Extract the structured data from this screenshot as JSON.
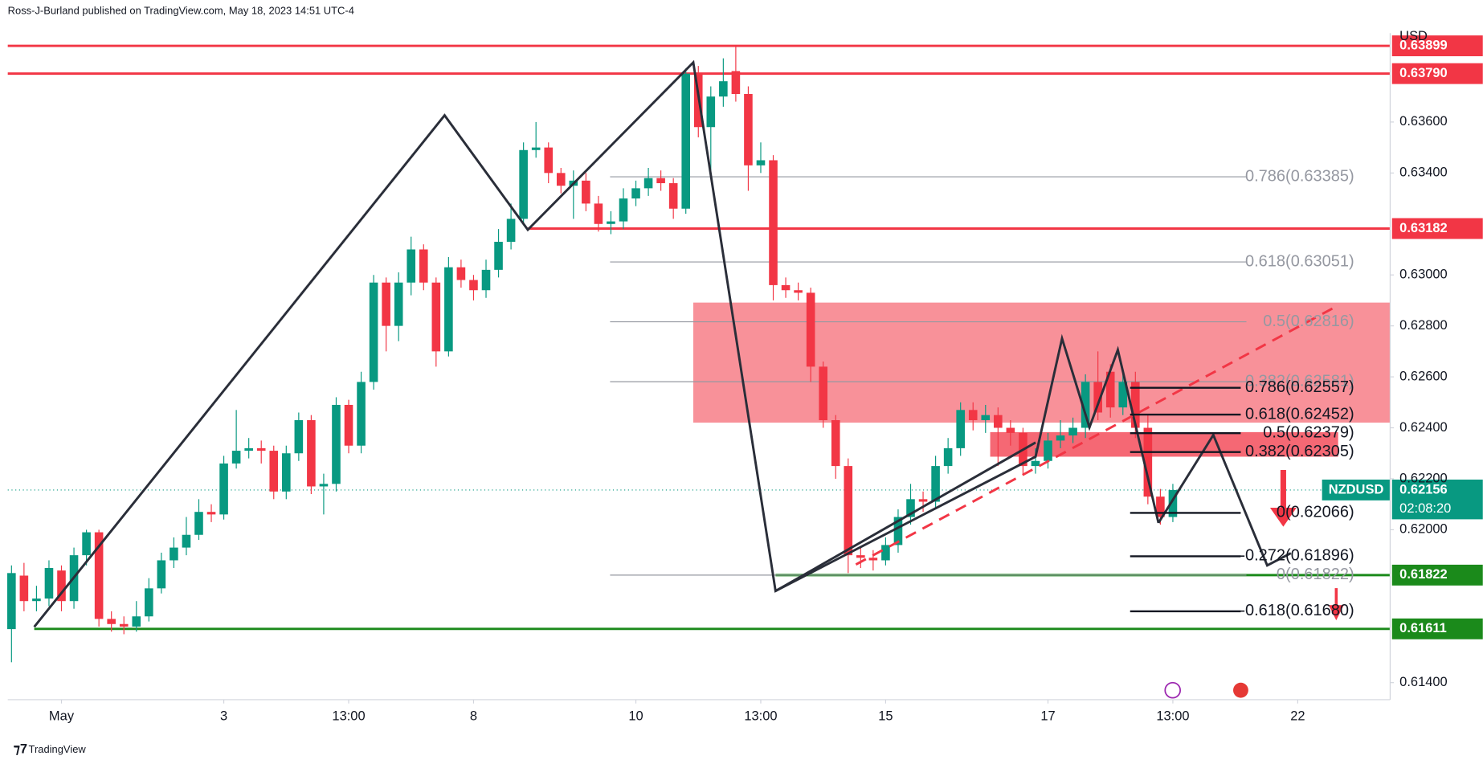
{
  "chart_data": {
    "type": "candlestick",
    "attribution": "Ross-J-Burland published on TradingView.com, May 18, 2023 14:51 UTC-4",
    "currency": "USD",
    "symbol": "NZDUSD",
    "countdown": "02:08:20",
    "footer": "TradingView",
    "last_price": {
      "value": 0.62156,
      "label": "0.62156"
    },
    "up_color": "#089981",
    "down_color": "#f23645",
    "xlim": [
      -0.3,
      110.4
    ],
    "ylim": [
      0.61333,
      0.63949
    ],
    "xticks": [
      {
        "value": 4,
        "label": "May"
      },
      {
        "value": 17,
        "label": "3"
      },
      {
        "value": 27,
        "label": "13:00"
      },
      {
        "value": 37,
        "label": "8"
      },
      {
        "value": 50,
        "label": "10"
      },
      {
        "value": 60,
        "label": "13:00"
      },
      {
        "value": 70,
        "label": "15"
      },
      {
        "value": 83,
        "label": "17"
      },
      {
        "value": 93,
        "label": "13:00"
      },
      {
        "value": 103,
        "label": "22"
      }
    ],
    "yticks": [
      {
        "value": 0.636,
        "label": "0.63600"
      },
      {
        "value": 0.634,
        "label": "0.63400"
      },
      {
        "value": 0.63,
        "label": "0.63000"
      },
      {
        "value": 0.628,
        "label": "0.62800"
      },
      {
        "value": 0.626,
        "label": "0.62600"
      },
      {
        "value": 0.624,
        "label": "0.62400"
      },
      {
        "value": 0.622,
        "label": "0.62200"
      },
      {
        "value": 0.62,
        "label": "0.62000"
      },
      {
        "value": 0.614,
        "label": "0.61400"
      }
    ],
    "hlines": [
      {
        "value": 0.63899,
        "label": "0.63899",
        "color": "#f23645"
      },
      {
        "value": 0.6379,
        "label": "0.63790",
        "color": "#f23645"
      },
      {
        "value": 0.63182,
        "label": "0.63182",
        "color": "#f23645"
      },
      {
        "value": 0.61822,
        "label": "0.61822",
        "color": "#1b8a1b"
      },
      {
        "value": 0.61611,
        "label": "0.61611",
        "color": "#1b8a1b"
      }
    ],
    "fib_a": [
      {
        "value": 0.63385,
        "label": "0.786(0.63385)"
      },
      {
        "value": 0.63051,
        "label": "0.618(0.63051)"
      },
      {
        "value": 0.62816,
        "label": "0.5(0.62816)"
      },
      {
        "value": 0.62581,
        "label": "0.382(0.62581)"
      },
      {
        "value": 0.61822,
        "label": "0(0.61822)"
      }
    ],
    "fib_b": [
      {
        "value": 0.62557,
        "label": "0.786(0.62557)"
      },
      {
        "value": 0.62452,
        "label": "0.618(0.62452)"
      },
      {
        "value": 0.62379,
        "label": "0.5(0.62379)"
      },
      {
        "value": 0.62305,
        "label": "0.382(0.62305)"
      },
      {
        "value": 0.62066,
        "label": "0(0.62066)"
      },
      {
        "value": 0.61896,
        "label": "-0.272(0.61896)"
      },
      {
        "value": 0.6168,
        "label": "-0.618(0.61680)"
      }
    ],
    "x": [
      0,
      1,
      2,
      3,
      4,
      5,
      6,
      7,
      8,
      9,
      10,
      11,
      12,
      13,
      14,
      15,
      16,
      17,
      18,
      19,
      20,
      21,
      22,
      23,
      24,
      25,
      26,
      27,
      28,
      29,
      30,
      31,
      32,
      33,
      34,
      35,
      36,
      37,
      38,
      39,
      40,
      41,
      42,
      43,
      44,
      45,
      46,
      47,
      48,
      49,
      50,
      51,
      52,
      53,
      54,
      55,
      56,
      57,
      58,
      59,
      60,
      61,
      62,
      63,
      64,
      65,
      66,
      67,
      68,
      69,
      70,
      71,
      72,
      73,
      74,
      75,
      76,
      77,
      78,
      79,
      80,
      81,
      82,
      83,
      84,
      85,
      86,
      87,
      88,
      89,
      90,
      91,
      92,
      93
    ],
    "open": [
      0.6161,
      0.6182,
      0.6172,
      0.6173,
      0.6184,
      0.6172,
      0.619,
      0.6199,
      0.6165,
      0.6163,
      0.6162,
      0.6166,
      0.6177,
      0.6188,
      0.6193,
      0.6198,
      0.6207,
      0.6206,
      0.6226,
      0.6231,
      0.6232,
      0.6231,
      0.6215,
      0.623,
      0.6243,
      0.6217,
      0.6218,
      0.6249,
      0.6233,
      0.6258,
      0.6297,
      0.628,
      0.6297,
      0.631,
      0.6297,
      0.627,
      0.6303,
      0.6298,
      0.6294,
      0.6302,
      0.6313,
      0.6322,
      0.6349,
      0.635,
      0.634,
      0.6335,
      0.6337,
      0.6328,
      0.632,
      0.6321,
      0.633,
      0.6334,
      0.6338,
      0.6336,
      0.6326,
      0.6379,
      0.6358,
      0.637,
      0.638,
      0.6371,
      0.6343,
      0.6345,
      0.6296,
      0.6294,
      0.6293,
      0.6264,
      0.6243,
      0.6225,
      0.619,
      0.6189,
      0.6188,
      0.6194,
      0.6205,
      0.6212,
      0.6211,
      0.6225,
      0.6232,
      0.6247,
      0.6243,
      0.6245,
      0.624,
      0.6238,
      0.6225,
      0.6227,
      0.6235,
      0.6237,
      0.624,
      0.6258,
      0.6262,
      0.6248,
      0.6258,
      0.624,
      0.6213,
      0.6205
    ],
    "high": [
      0.6186,
      0.6187,
      0.6178,
      0.6188,
      0.6186,
      0.6193,
      0.62,
      0.62,
      0.6168,
      0.6166,
      0.6172,
      0.6181,
      0.6191,
      0.6197,
      0.6205,
      0.6212,
      0.621,
      0.6229,
      0.6247,
      0.6236,
      0.6235,
      0.6233,
      0.6233,
      0.6246,
      0.6245,
      0.6222,
      0.6252,
      0.6251,
      0.6262,
      0.63,
      0.6299,
      0.6301,
      0.6315,
      0.6312,
      0.6299,
      0.6307,
      0.6306,
      0.63,
      0.6306,
      0.6318,
      0.6328,
      0.6352,
      0.636,
      0.6352,
      0.6342,
      0.6341,
      0.634,
      0.6331,
      0.6325,
      0.6334,
      0.6337,
      0.6342,
      0.6341,
      0.6338,
      0.6381,
      0.6382,
      0.6374,
      0.6385,
      0.639,
      0.6374,
      0.6352,
      0.6347,
      0.6299,
      0.6297,
      0.6295,
      0.6266,
      0.6245,
      0.6228,
      0.6193,
      0.6192,
      0.6197,
      0.6208,
      0.6218,
      0.6215,
      0.6229,
      0.6236,
      0.625,
      0.625,
      0.6249,
      0.6248,
      0.6243,
      0.624,
      0.6232,
      0.6238,
      0.6243,
      0.6244,
      0.6261,
      0.627,
      0.6265,
      0.6262,
      0.6262,
      0.6245,
      0.6216,
      0.6218
    ],
    "low": [
      0.6148,
      0.6168,
      0.6168,
      0.617,
      0.6168,
      0.6169,
      0.6186,
      0.6162,
      0.616,
      0.6159,
      0.616,
      0.6164,
      0.6175,
      0.6185,
      0.619,
      0.6196,
      0.6203,
      0.6204,
      0.6224,
      0.6228,
      0.6226,
      0.6212,
      0.6212,
      0.6227,
      0.6214,
      0.6206,
      0.6215,
      0.623,
      0.623,
      0.6255,
      0.627,
      0.6274,
      0.6292,
      0.6294,
      0.6264,
      0.6268,
      0.6295,
      0.629,
      0.6291,
      0.6299,
      0.631,
      0.632,
      0.6346,
      0.6336,
      0.6332,
      0.6322,
      0.6325,
      0.6317,
      0.6316,
      0.6318,
      0.6327,
      0.6331,
      0.6333,
      0.6322,
      0.6324,
      0.6354,
      0.634,
      0.6366,
      0.6368,
      0.6333,
      0.634,
      0.629,
      0.6291,
      0.629,
      0.6258,
      0.624,
      0.622,
      0.6183,
      0.6185,
      0.6184,
      0.6186,
      0.6191,
      0.6202,
      0.6207,
      0.6208,
      0.6222,
      0.6229,
      0.6239,
      0.6238,
      0.6225,
      0.6233,
      0.6222,
      0.6222,
      0.6224,
      0.6232,
      0.6234,
      0.6236,
      0.6243,
      0.6244,
      0.6245,
      0.6236,
      0.621,
      0.6202,
      0.6203
    ],
    "close": [
      0.6183,
      0.6172,
      0.6173,
      0.6185,
      0.6172,
      0.619,
      0.6199,
      0.6165,
      0.6163,
      0.6162,
      0.6166,
      0.6177,
      0.6188,
      0.6193,
      0.6198,
      0.6207,
      0.6206,
      0.6226,
      0.6231,
      0.6232,
      0.6231,
      0.6215,
      0.623,
      0.6243,
      0.6217,
      0.6218,
      0.6249,
      0.6233,
      0.6258,
      0.6297,
      0.628,
      0.6297,
      0.631,
      0.6297,
      0.627,
      0.6303,
      0.6298,
      0.6294,
      0.6302,
      0.6313,
      0.6322,
      0.6349,
      0.635,
      0.634,
      0.6335,
      0.6337,
      0.6328,
      0.632,
      0.6321,
      0.633,
      0.6334,
      0.6338,
      0.6336,
      0.6326,
      0.6379,
      0.6358,
      0.637,
      0.6376,
      0.6371,
      0.6343,
      0.6345,
      0.6296,
      0.6294,
      0.6293,
      0.6264,
      0.6243,
      0.6225,
      0.619,
      0.6189,
      0.6188,
      0.6194,
      0.6205,
      0.6212,
      0.6211,
      0.6225,
      0.6232,
      0.6247,
      0.6243,
      0.6245,
      0.624,
      0.6238,
      0.6225,
      0.6227,
      0.6235,
      0.6237,
      0.624,
      0.6258,
      0.6246,
      0.6248,
      0.6258,
      0.624,
      0.6213,
      0.6205,
      0.62156
    ]
  }
}
